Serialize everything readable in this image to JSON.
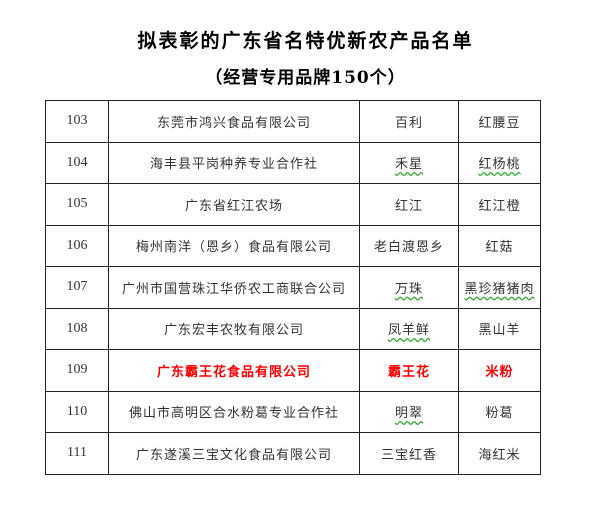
{
  "title": "拟表彰的广东省名特优新农产品名单",
  "subtitle": "（经营专用品牌150个）",
  "highlight_color": "#ff0000",
  "rows": [
    {
      "no": "103",
      "company": "东莞市鸿兴食品有限公司",
      "brand": "百利",
      "product": "红腰豆"
    },
    {
      "no": "104",
      "company": "海丰县平岗种养专业合作社",
      "brand": "禾星",
      "product": "红杨桃"
    },
    {
      "no": "105",
      "company": "广东省红江农场",
      "brand": "红江",
      "product": "红江橙"
    },
    {
      "no": "106",
      "company": "梅州南洋（恩乡）食品有限公司",
      "brand": "老白渡恩乡",
      "product": "红菇"
    },
    {
      "no": "107",
      "company": "广州市国营珠江华侨农工商联合公司",
      "brand": "万珠",
      "product": "黑珍猪猪肉"
    },
    {
      "no": "108",
      "company": "广东宏丰农牧有限公司",
      "brand": "凤羊鲜",
      "product": "黑山羊"
    },
    {
      "no": "109",
      "company": "广东霸王花食品有限公司",
      "brand": "霸王花",
      "product": "米粉"
    },
    {
      "no": "110",
      "company": "佛山市高明区合水粉葛专业合作社",
      "brand": "明翠",
      "product": "粉葛"
    },
    {
      "no": "111",
      "company": "广东遂溪三宝文化食品有限公司",
      "brand": "三宝红香",
      "product": "海红米"
    }
  ]
}
